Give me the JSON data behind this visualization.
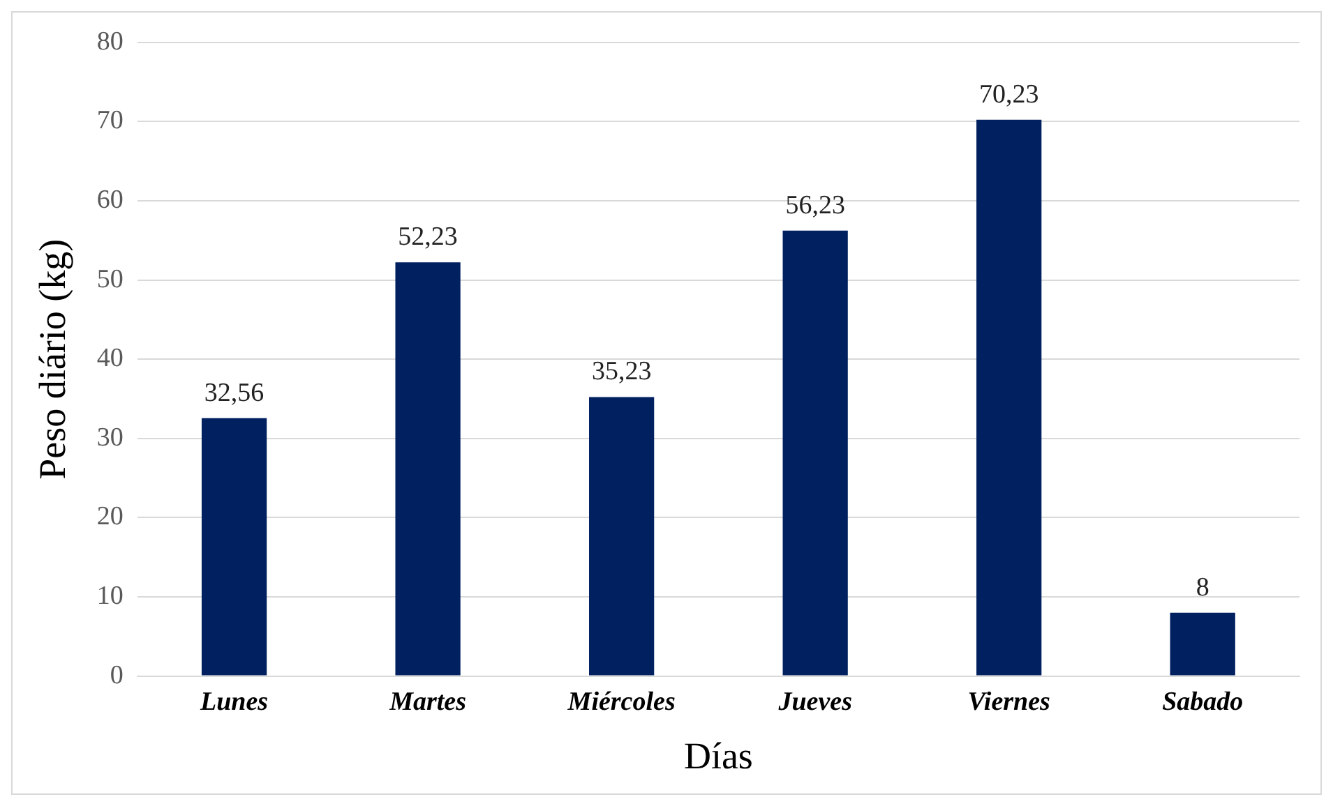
{
  "chart_data": {
    "type": "bar",
    "xlabel": "Días",
    "ylabel": "Peso diário (kg)",
    "categories": [
      "Lunes",
      "Martes",
      "Miércoles",
      "Jueves",
      "Viernes",
      "Sabado"
    ],
    "values": [
      32.56,
      52.23,
      35.23,
      56.23,
      70.23,
      8
    ],
    "value_labels": [
      "32,56",
      "52,23",
      "35,23",
      "56,23",
      "70,23",
      "8"
    ],
    "color": "#002060",
    "ylim": [
      0,
      80
    ],
    "yticks": [
      0,
      10,
      20,
      30,
      40,
      50,
      60,
      70,
      80
    ],
    "grid": "y",
    "legend": false
  }
}
